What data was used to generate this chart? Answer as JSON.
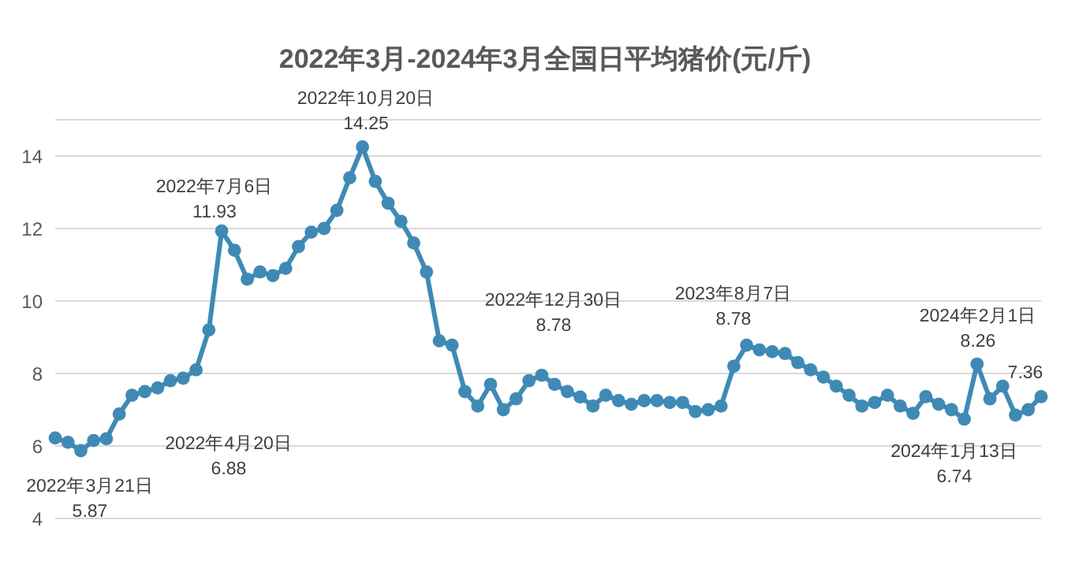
{
  "chart_data": {
    "type": "line",
    "line_style": "solid",
    "title": "2022年3月-2024年3月全国日平均猪价(元/斤)",
    "marker": "circle",
    "grid": "y",
    "tick_labels": "y",
    "ylim": [
      4,
      15
    ],
    "yticks": [
      4,
      6,
      8,
      10,
      12,
      14
    ],
    "categories": [
      null,
      null,
      null,
      null,
      null,
      null,
      null,
      null,
      null,
      null,
      null,
      null,
      null,
      null,
      null,
      null,
      null,
      null,
      null,
      null,
      null,
      null,
      null,
      null,
      null,
      null,
      null,
      null,
      null,
      null,
      null,
      null,
      null,
      null,
      null,
      null,
      null,
      null,
      null,
      null,
      null,
      null,
      null,
      null,
      null,
      null,
      null,
      null,
      null,
      null,
      null,
      null,
      null,
      null,
      null,
      null,
      null,
      null,
      null,
      null,
      null,
      null,
      null,
      null,
      null,
      null,
      null,
      null,
      null,
      null,
      null,
      null,
      null,
      null,
      null,
      null,
      null,
      null
    ],
    "series": [
      {
        "color": "#3f8ab5",
        "values": [
          6.22,
          6.1,
          5.87,
          6.15,
          6.2,
          6.88,
          7.4,
          7.5,
          7.6,
          7.8,
          7.87,
          8.1,
          9.2,
          11.93,
          11.4,
          10.6,
          10.8,
          10.7,
          10.9,
          11.5,
          11.9,
          12.0,
          12.5,
          13.4,
          14.25,
          13.3,
          12.7,
          12.2,
          11.6,
          10.8,
          8.9,
          8.78,
          7.5,
          7.1,
          7.7,
          7.0,
          7.3,
          7.8,
          7.95,
          7.7,
          7.5,
          7.35,
          7.1,
          7.4,
          7.25,
          7.15,
          7.25,
          7.25,
          7.2,
          7.2,
          6.95,
          7.0,
          7.1,
          8.2,
          8.78,
          8.65,
          8.6,
          8.55,
          8.3,
          8.1,
          7.9,
          7.65,
          7.4,
          7.1,
          7.2,
          7.4,
          7.1,
          6.9,
          7.36,
          7.15,
          7.0,
          6.74,
          8.26,
          7.3,
          7.65,
          6.85,
          7.0,
          7.36
        ]
      }
    ],
    "annotations": [
      "2022年3月21日\n5.87",
      "2022年4月20日\n6.88",
      "2022年7月6日\n11.93",
      "2022年10月20日\n14.25",
      "2022年12月30日\n8.78",
      "2023年8月7日\n8.78",
      "2024年1月13日\n6.74",
      "2024年2月1日\n8.26",
      "7.36"
    ]
  }
}
